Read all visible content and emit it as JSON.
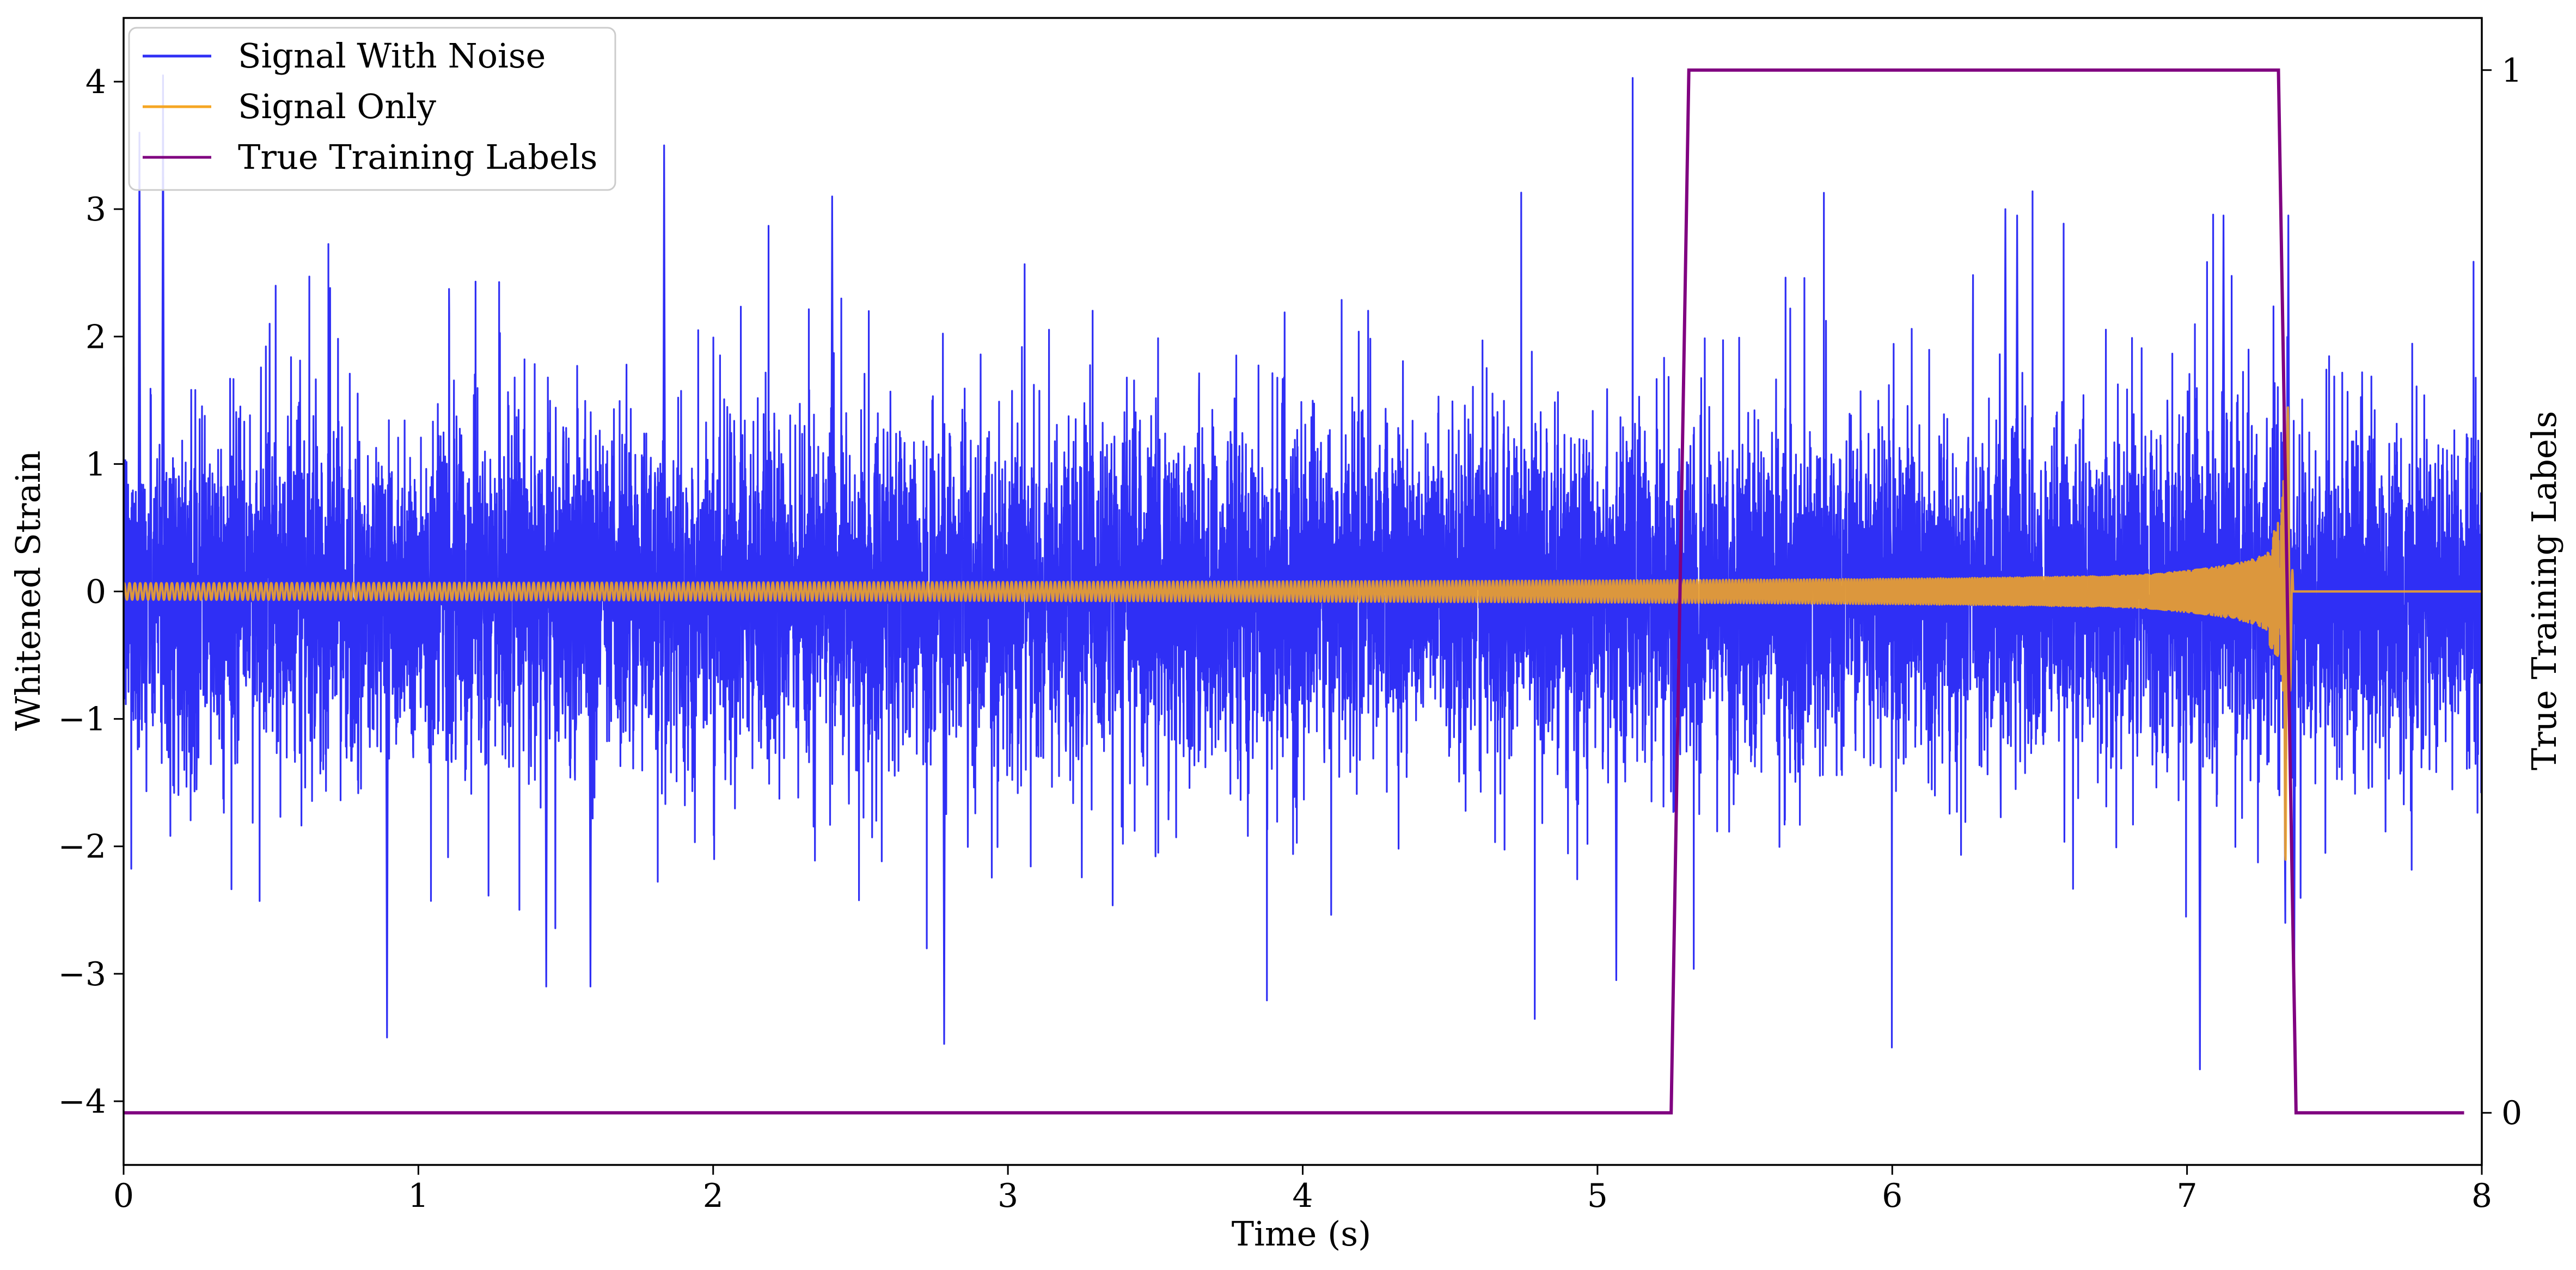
{
  "chart_data": {
    "type": "line",
    "xlabel": "Time (s)",
    "ylabel": "Whitened Strain",
    "y2label": "True Training Labels",
    "xlim": [
      0,
      8
    ],
    "ylim": [
      -4.5,
      4.5
    ],
    "y2lim": [
      -0.05,
      1.05
    ],
    "xticks": [
      "0",
      "1",
      "2",
      "3",
      "4",
      "5",
      "6",
      "7",
      "8"
    ],
    "yticks": [
      "−4",
      "−3",
      "−2",
      "−1",
      "0",
      "1",
      "2",
      "3",
      "4"
    ],
    "y2ticks": [
      "0",
      "1"
    ],
    "grid": false,
    "legend_position": "upper-left",
    "legend": [
      "Signal With Noise",
      "Signal Only",
      "True Training Labels"
    ],
    "series": [
      {
        "name": "Signal With Noise",
        "color": "#2f2ff5",
        "axis": "left",
        "description_points": {
          "t_range": [
            0,
            8
          ],
          "typical_envelope": [
            -2.0,
            2.0
          ],
          "peaks": [
            [
              0.05,
              3.6
            ],
            [
              0.13,
              4.05
            ],
            [
              1.83,
              3.5
            ],
            [
              2.4,
              3.1
            ],
            [
              6.38,
              3.0
            ],
            [
              6.42,
              2.95
            ],
            [
              7.12,
              2.95
            ],
            [
              7.34,
              2.95
            ]
          ],
          "troughs": [
            [
              0.89,
              -3.5
            ],
            [
              2.78,
              -3.55
            ],
            [
              5.06,
              -3.05
            ],
            [
              7.04,
              -3.75
            ],
            [
              7.36,
              -3.1
            ],
            [
              1.43,
              -3.1
            ],
            [
              1.58,
              -3.1
            ]
          ]
        }
      },
      {
        "name": "Signal Only",
        "color": "#f5a623",
        "axis": "left",
        "chirp": {
          "t_start": 0,
          "t_merger": 7.33,
          "t_ringdown_end": 7.36,
          "start_amplitude": 0.07,
          "amplitude_at_5s": 0.1,
          "amplitude_at_6s": 0.16,
          "amplitude_at_7s": 0.45,
          "peak_max": 1.7,
          "peak_min": -2.45,
          "start_frequency_hz": 28,
          "end_frequency_hz": 250,
          "post_merger_value": 0
        }
      },
      {
        "name": "True Training Labels",
        "color": "#800080",
        "axis": "right",
        "x": [
          0,
          5.25,
          5.31,
          7.31,
          7.37,
          7.94
        ],
        "y": [
          0,
          0,
          1,
          1,
          0,
          0
        ]
      }
    ]
  }
}
